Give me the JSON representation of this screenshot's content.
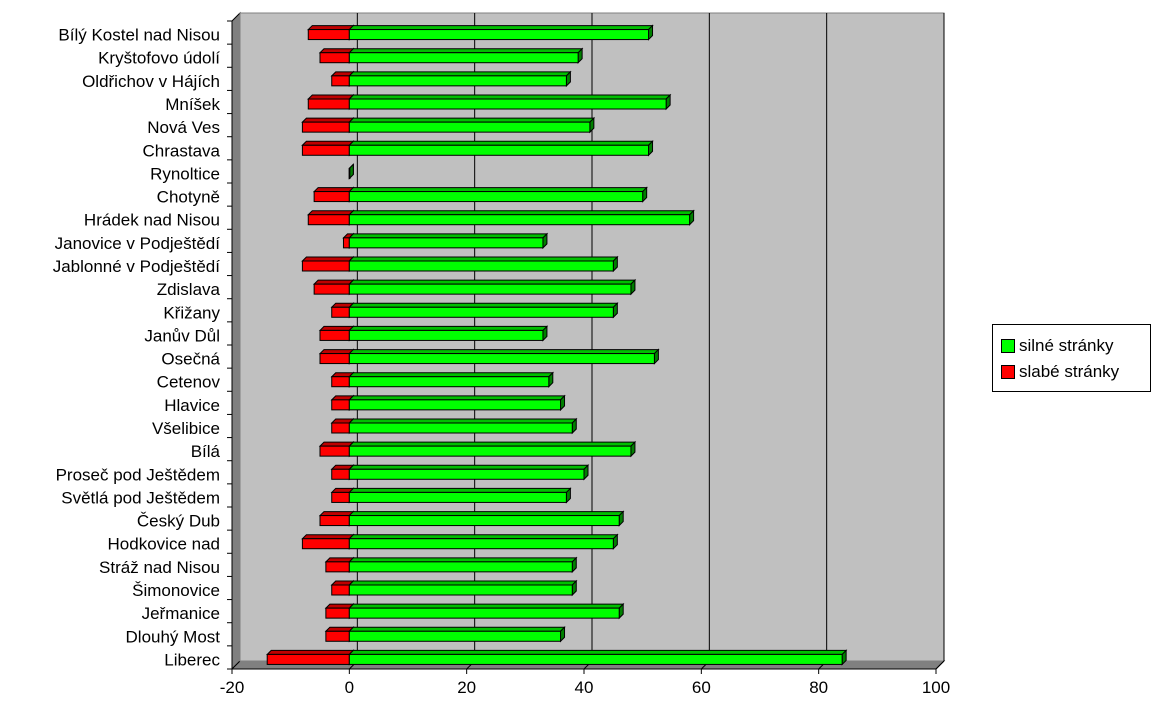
{
  "chart_data": {
    "type": "bar",
    "orientation": "horizontal",
    "categories": [
      "Bílý Kostel nad Nisou",
      "Kryštofovo údolí",
      "Oldřichov v Hájích",
      "Mníšek",
      "Nová Ves",
      "Chrastava",
      "Rynoltice",
      "Chotyně",
      "Hrádek nad Nisou",
      "Janovice v Podještědí",
      "Jablonné v Podještědí",
      "Zdislava",
      "Křižany",
      "Janův Důl",
      "Osečná",
      "Cetenov",
      "Hlavice",
      "Všelibice",
      "Bílá",
      "Proseč pod Ještědem",
      "Světlá pod Ještědem",
      "Český Dub",
      "Hodkovice nad",
      "Stráž nad Nisou",
      "Šimonovice",
      "Jeřmanice",
      "Dlouhý Most",
      "Liberec"
    ],
    "series": [
      {
        "name": "silné stránky",
        "color": "#00ff00",
        "values": [
          51,
          39,
          37,
          54,
          41,
          51,
          0,
          50,
          58,
          33,
          45,
          48,
          45,
          33,
          52,
          34,
          36,
          38,
          48,
          40,
          37,
          46,
          45,
          38,
          38,
          46,
          36,
          84
        ]
      },
      {
        "name": "slabé stránky",
        "color": "#ff0000",
        "values": [
          -7,
          -5,
          -3,
          -7,
          -8,
          -8,
          0,
          -6,
          -7,
          -1,
          -8,
          -6,
          -3,
          -5,
          -5,
          -3,
          -3,
          -3,
          -5,
          -3,
          -3,
          -5,
          -8,
          -4,
          -3,
          -4,
          -4,
          -14
        ]
      }
    ],
    "xlim": [
      -20,
      100
    ],
    "xticks": [
      "-20",
      "0",
      "20",
      "40",
      "60",
      "80",
      "100"
    ],
    "grid": "vertical major gridlines",
    "plot_background": "#c0c0c0",
    "legend_position": "right"
  }
}
